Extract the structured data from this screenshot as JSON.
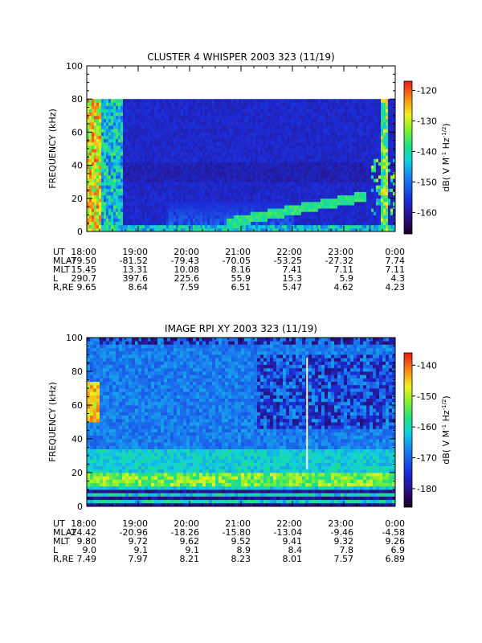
{
  "chart_data": [
    {
      "type": "heatmap",
      "title": "CLUSTER 4 WHISPER 2003 323 (11/19)",
      "ylabel": "FREQUENCY (kHz)",
      "ylim": [
        0,
        100
      ],
      "y_ticks": [
        "0",
        "20",
        "40",
        "60",
        "80",
        "100"
      ],
      "y_data_max_khz": 80,
      "x_range_hours": [
        18,
        24
      ],
      "colorbar": {
        "label": "dB( V M",
        "label_sup1": "-1",
        "label_mid": " Hz",
        "label_sup2": "-1/2",
        "label_end": ")",
        "range": [
          -167,
          -117
        ],
        "ticks": [
          "-120",
          "-130",
          "-140",
          "-150",
          "-160"
        ],
        "tick_values": [
          -120,
          -130,
          -140,
          -150,
          -160
        ]
      },
      "ephemeris_labels": [
        "UT",
        "MLAT",
        "MLT",
        "L",
        "R,RE"
      ],
      "ephemeris_columns": [
        [
          "18:00",
          "-79.50",
          "15.45",
          "290.7",
          "9.65"
        ],
        [
          "19:00",
          "-81.52",
          "13.31",
          "397.6",
          "8.64"
        ],
        [
          "20:00",
          "-79.43",
          "10.08",
          "225.6",
          "7.59"
        ],
        [
          "21:00",
          "-70.05",
          "8.16",
          "55.9",
          "6.51"
        ],
        [
          "22:00",
          "-53.25",
          "7.41",
          "15.3",
          "5.47"
        ],
        [
          "23:00",
          "-27.32",
          "7.11",
          "5.9",
          "4.62"
        ],
        [
          "0:00",
          "7.74",
          "7.11",
          "4.3",
          "4.23"
        ]
      ]
    },
    {
      "type": "heatmap",
      "title": "IMAGE RPI XY 2003 323 (11/19)",
      "ylabel": "FREQUENCY (kHz)",
      "ylim": [
        0,
        100
      ],
      "y_ticks": [
        "0",
        "20",
        "40",
        "60",
        "80",
        "100"
      ],
      "x_range_hours": [
        18,
        24
      ],
      "data_gap_hours": [
        22.27,
        22.3
      ],
      "data_gap_khz": [
        22,
        88
      ],
      "colorbar": {
        "label": "dB( V M",
        "label_sup1": "-1",
        "label_mid": " Hz",
        "label_sup2": "-1/2",
        "label_end": ")",
        "range": [
          -186,
          -136
        ],
        "ticks": [
          "-140",
          "-150",
          "-160",
          "-170",
          "-180"
        ],
        "tick_values": [
          -140,
          -150,
          -160,
          -170,
          -180
        ]
      },
      "ephemeris_labels": [
        "UT",
        "MLAT",
        "MLT",
        "L",
        "R,RE"
      ],
      "ephemeris_columns": [
        [
          "18:00",
          "-24.42",
          "9.80",
          "9.0",
          "7.49"
        ],
        [
          "19:00",
          "-20.96",
          "9.72",
          "9.1",
          "7.97"
        ],
        [
          "20:00",
          "-18.26",
          "9.62",
          "9.1",
          "8.21"
        ],
        [
          "21:00",
          "-15.80",
          "9.52",
          "8.9",
          "8.23"
        ],
        [
          "22:00",
          "-13.04",
          "9.41",
          "8.4",
          "8.01"
        ],
        [
          "23:00",
          "-9.46",
          "9.32",
          "7.8",
          "7.57"
        ],
        [
          "0:00",
          "-4.58",
          "9.26",
          "6.9",
          "6.89"
        ]
      ]
    }
  ]
}
